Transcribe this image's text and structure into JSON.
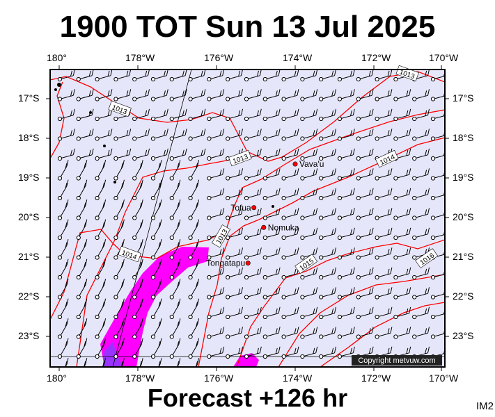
{
  "title": "1900 TOT Sun 13 Jul 2025",
  "footer": "Forecast +126 hr",
  "corner_label": "IM2",
  "copyright": "Copyright metvuw.com",
  "axes": {
    "x_top": [
      "180°",
      "178°W",
      "176°W",
      "174°W",
      "172°W",
      "170°W"
    ],
    "x_bottom": [
      "180°",
      "178°W",
      "176°W",
      "174°W",
      "172°W",
      "170°W"
    ],
    "y_left": [
      "17°S",
      "18°S",
      "19°S",
      "20°S",
      "21°S",
      "22°S",
      "23°S"
    ],
    "y_right": [
      "17°S",
      "18°S",
      "19°S",
      "20°S",
      "21°S",
      "22°S",
      "23°S"
    ]
  },
  "places": [
    {
      "name": "Vava'u",
      "lon": -174.0,
      "lat": -18.65
    },
    {
      "name": "Tofua",
      "lon": -175.05,
      "lat": -19.75
    },
    {
      "name": "Nomuka",
      "lon": -174.8,
      "lat": -20.25
    },
    {
      "name": "Tongatapu",
      "lon": -175.2,
      "lat": -21.15
    }
  ],
  "isobar_labels": [
    "1013",
    "1013",
    "1013",
    "1014",
    "1013",
    "1014",
    "1015",
    "1016"
  ],
  "colors": {
    "map_bg": "#e6e6fa",
    "isobar": "#ff0000",
    "rain_light": "#ff00ff",
    "rain_heavy": "#9933ff"
  }
}
